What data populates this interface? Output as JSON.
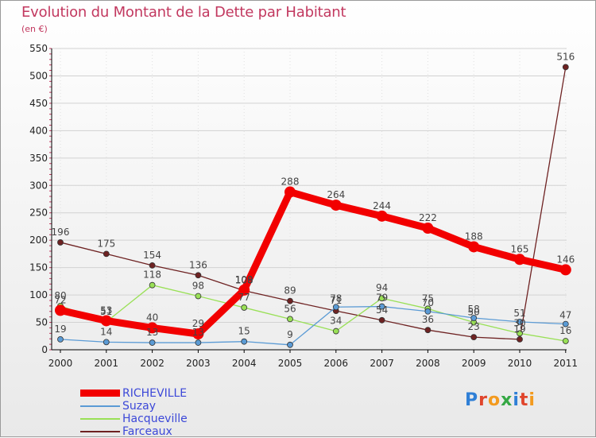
{
  "title": "Evolution du Montant de la Dette par Habitant",
  "subtitle": "(en €)",
  "logo_text": "Proxiti",
  "colors": {
    "title": "#c2385f",
    "legend_text": "#3c48d8",
    "axis": "#000000",
    "grid": "#d0d0d0"
  },
  "chart_data": {
    "type": "line",
    "x": [
      "2000",
      "2001",
      "2002",
      "2003",
      "2004",
      "2005",
      "2006",
      "2007",
      "2008",
      "2009",
      "2010",
      "2011"
    ],
    "yticks": [
      "0",
      "50",
      "100",
      "150",
      "200",
      "250",
      "300",
      "350",
      "400",
      "450",
      "500",
      "550"
    ],
    "ylim": [
      0,
      550
    ],
    "grid": true,
    "legend_position": "bottom-left",
    "series": [
      {
        "name": "RICHEVILLE",
        "color": "#f20000",
        "values": [
          72,
          53,
          40,
          29,
          109,
          288,
          264,
          244,
          222,
          188,
          165,
          146
        ],
        "labels": [
          "72",
          "53",
          "40",
          "29",
          "109",
          "288",
          "264",
          "244",
          "222",
          "188",
          "165",
          "146"
        ]
      },
      {
        "name": "Suzay",
        "color": "#5b9bd5",
        "values": [
          19,
          14,
          13,
          13,
          15,
          9,
          78,
          79,
          70,
          58,
          51,
          47
        ],
        "labels": [
          "19",
          "14",
          "13",
          "13",
          "15",
          "9",
          "78",
          "79",
          "70",
          "58",
          "51",
          "47"
        ]
      },
      {
        "name": "Hacqueville",
        "color": "#99e056",
        "values": [
          80,
          51,
          118,
          98,
          77,
          56,
          34,
          94,
          75,
          50,
          30,
          16
        ],
        "labels": [
          "80",
          "51",
          "118",
          "98",
          "77",
          "56",
          "34",
          "94",
          "75",
          "50",
          "30",
          "16"
        ]
      },
      {
        "name": "Farceaux",
        "color": "#6e2222",
        "values": [
          196,
          175,
          154,
          136,
          108,
          89,
          71,
          54,
          36,
          23,
          19,
          516
        ],
        "labels": [
          "196",
          "175",
          "154",
          "136",
          "108",
          "89",
          "71",
          "54",
          "36",
          "23",
          "19",
          "516"
        ]
      }
    ]
  }
}
